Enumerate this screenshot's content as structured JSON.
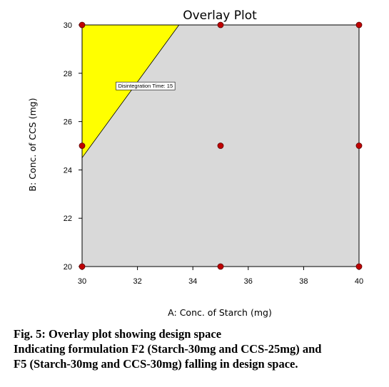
{
  "chart_data": {
    "type": "overlay-contour",
    "title": "Overlay Plot",
    "xlabel": "A: Conc. of Starch (mg)",
    "ylabel": "B: Conc. of CCS (mg)",
    "xlim": [
      30,
      40
    ],
    "ylim": [
      20,
      30
    ],
    "xticks": [
      30,
      32,
      34,
      36,
      38,
      40
    ],
    "yticks": [
      20,
      22,
      24,
      26,
      28,
      30
    ],
    "grid": false,
    "design_space_region": {
      "label": "",
      "color": "#ffff00",
      "boundary": [
        [
          30,
          24.5
        ],
        [
          33.5,
          30
        ],
        [
          30,
          30
        ]
      ]
    },
    "background_region_color": "#d9d9d9",
    "annotation": {
      "text": "Disintegration Time: 15",
      "x": 31.3,
      "y": 27.4
    },
    "design_points": [
      {
        "x": 30,
        "y": 20
      },
      {
        "x": 30,
        "y": 25
      },
      {
        "x": 30,
        "y": 30
      },
      {
        "x": 35,
        "y": 20
      },
      {
        "x": 35,
        "y": 25
      },
      {
        "x": 35,
        "y": 30
      },
      {
        "x": 40,
        "y": 20
      },
      {
        "x": 40,
        "y": 25
      },
      {
        "x": 40,
        "y": 30
      }
    ],
    "point_color": "#c00000"
  },
  "caption": {
    "line1": "Fig.  5: Overlay plot showing design space",
    "line2": "Indicating formulation F2 (Starch-30mg and CCS-25mg) and",
    "line3": "F5 (Starch-30mg and CCS-30mg) falling in design space."
  }
}
